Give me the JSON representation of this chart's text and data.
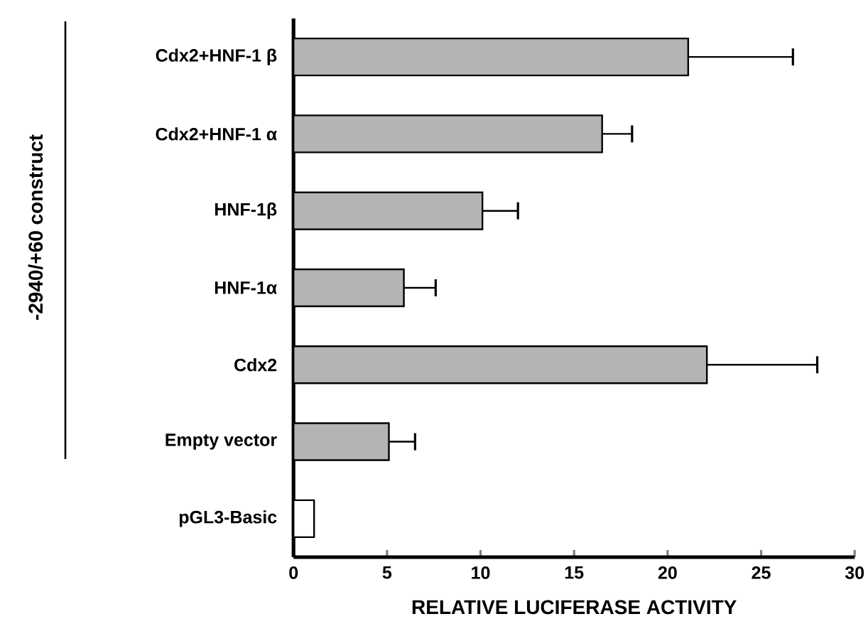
{
  "chart_data": {
    "type": "bar",
    "orientation": "horizontal",
    "xlabel": "RELATIVE LUCIFERASE ACTIVITY",
    "categories": [
      "Cdx2+HNF-1 β",
      "Cdx2+HNF-1 α",
      "HNF-1β",
      "HNF-1α",
      "Cdx2",
      "Empty vector",
      "pGL3-Basic"
    ],
    "values": [
      21.1,
      16.5,
      10.1,
      5.9,
      22.1,
      5.1,
      1.1
    ],
    "errors": [
      5.6,
      1.6,
      1.9,
      1.7,
      5.9,
      1.4,
      null
    ],
    "colors": [
      "#b4b4b4",
      "#b4b4b4",
      "#b4b4b4",
      "#b4b4b4",
      "#b4b4b4",
      "#b4b4b4",
      "#ffffff"
    ],
    "xlim": [
      0,
      30
    ],
    "xticks": [
      0,
      5,
      10,
      15,
      20,
      25,
      30
    ],
    "annotations": [
      "-2940/+60 construct"
    ],
    "grid": false
  }
}
